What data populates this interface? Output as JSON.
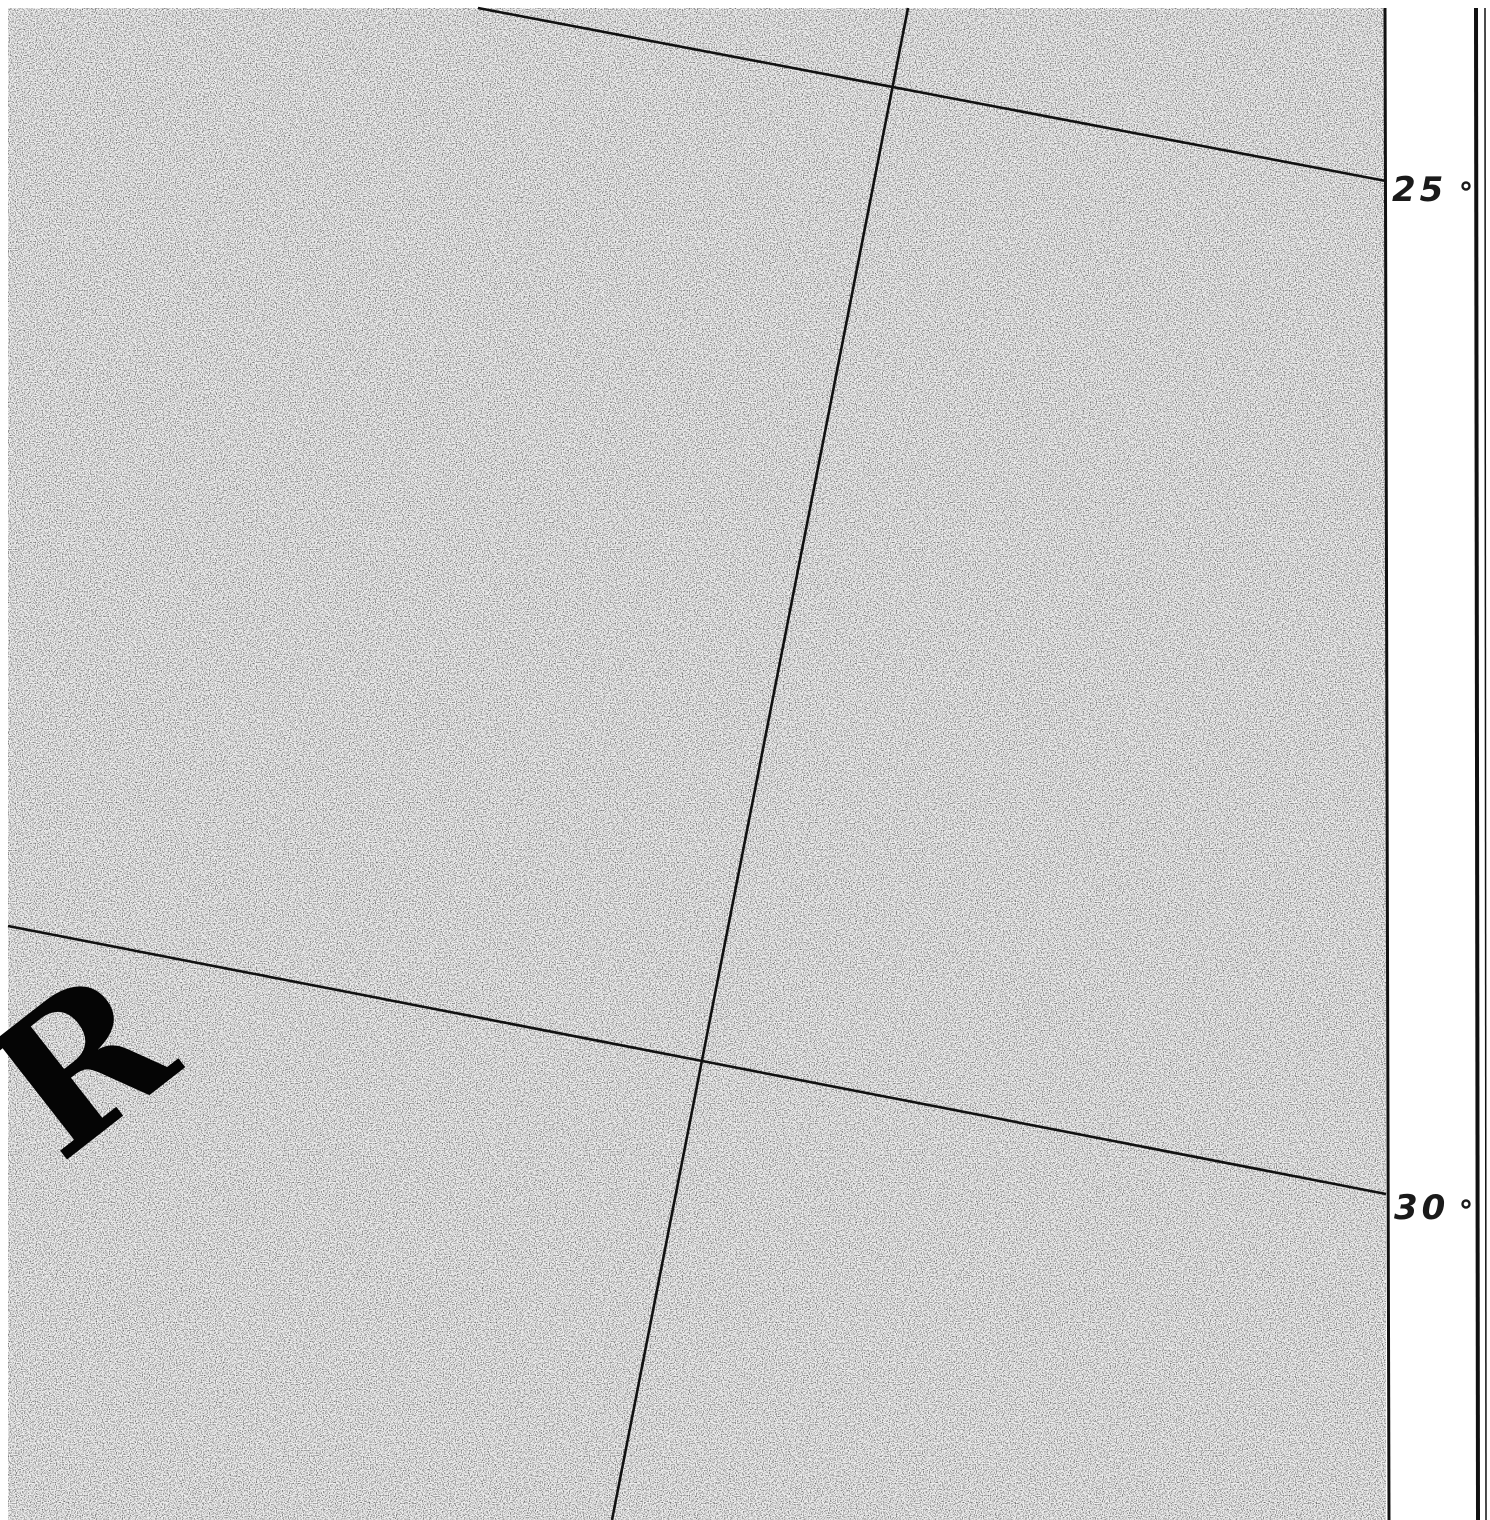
{
  "map": {
    "region_letter": "R",
    "latitude_labels": [
      {
        "id": "lat-25",
        "text": "25"
      },
      {
        "id": "lat-30",
        "text": "30"
      }
    ],
    "colors": {
      "ink": "#111111",
      "paper": "#ffffff",
      "stipple": "#9a9a9a"
    }
  }
}
